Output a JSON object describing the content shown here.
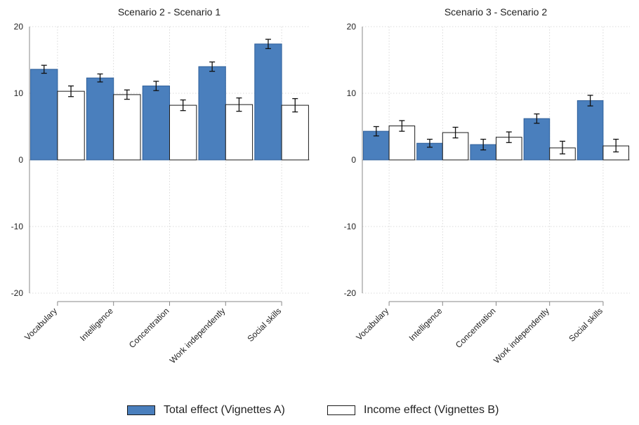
{
  "chart_data": [
    {
      "type": "bar",
      "title": "Scenario 2 - Scenario 1",
      "categories": [
        "Vocabulary",
        "Intelligence",
        "Concentration",
        "Work independently",
        "Social skills"
      ],
      "ylim": [
        -20,
        20
      ],
      "yticks": [
        -20,
        -10,
        0,
        10,
        20
      ],
      "grid": true,
      "series": [
        {
          "name": "Total effect (Vignettes A)",
          "values": [
            13.6,
            12.3,
            11.1,
            14.0,
            17.4
          ],
          "ci_low": [
            13.0,
            11.7,
            10.4,
            13.3,
            16.7
          ],
          "ci_high": [
            14.2,
            12.9,
            11.8,
            14.7,
            18.1
          ]
        },
        {
          "name": "Income effect (Vignettes B)",
          "values": [
            10.3,
            9.8,
            8.2,
            8.3,
            8.2
          ],
          "ci_low": [
            9.5,
            9.1,
            7.4,
            7.3,
            7.2
          ],
          "ci_high": [
            11.1,
            10.5,
            9.0,
            9.3,
            9.2
          ]
        }
      ]
    },
    {
      "type": "bar",
      "title": "Scenario 3 - Scenario 2",
      "categories": [
        "Vocabulary",
        "Intelligence",
        "Concentration",
        "Work independently",
        "Social skills"
      ],
      "ylim": [
        -20,
        20
      ],
      "yticks": [
        -20,
        -10,
        0,
        10,
        20
      ],
      "grid": true,
      "series": [
        {
          "name": "Total effect (Vignettes A)",
          "values": [
            4.3,
            2.5,
            2.3,
            6.2,
            8.9
          ],
          "ci_low": [
            3.6,
            1.9,
            1.5,
            5.5,
            8.1
          ],
          "ci_high": [
            5.0,
            3.1,
            3.1,
            6.9,
            9.7
          ]
        },
        {
          "name": "Income effect (Vignettes B)",
          "values": [
            5.1,
            4.1,
            3.4,
            1.8,
            2.1
          ],
          "ci_low": [
            4.3,
            3.3,
            2.6,
            0.9,
            1.2
          ],
          "ci_high": [
            5.9,
            4.9,
            4.2,
            2.8,
            3.1
          ]
        }
      ]
    }
  ],
  "legend": {
    "position": "bottom",
    "items": [
      {
        "label": "Total effect (Vignettes A)",
        "color": "#4a7fbd"
      },
      {
        "label": "Income effect (Vignettes B)",
        "color": "#ffffff"
      }
    ]
  }
}
